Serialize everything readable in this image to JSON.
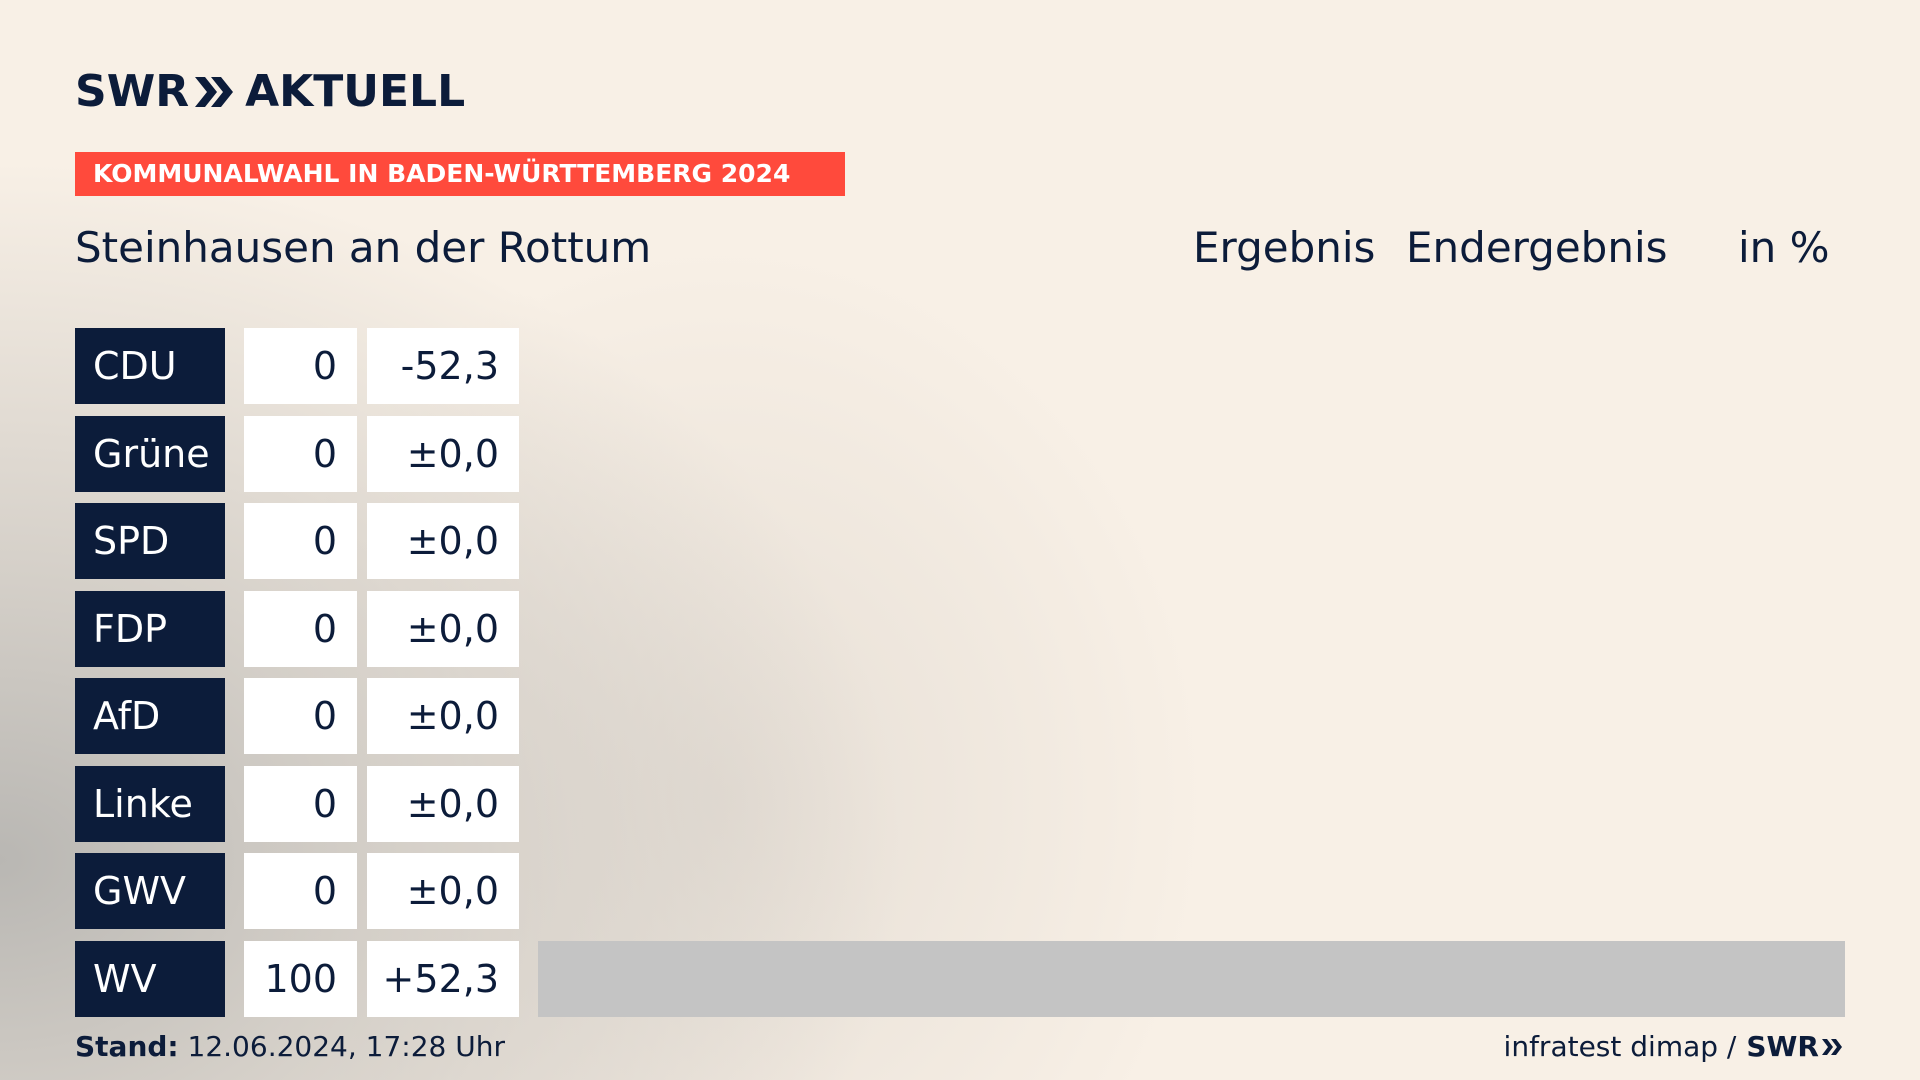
{
  "logo": {
    "text_left": "SWR",
    "text_right": "AKTUELL"
  },
  "banner": "KOMMUNALWAHL IN BADEN-WÜRTTEMBERG 2024",
  "title": "Steinhausen an der Rottum",
  "headers": {
    "ergebnis": "Ergebnis",
    "endergebnis": "Endergebnis",
    "unit": "in %"
  },
  "colors": {
    "party_bg": "#0c1c3a",
    "banner_bg": "#ff4a3c",
    "bar": "#c4c4c4"
  },
  "chart_data": {
    "type": "bar",
    "categories": [
      "CDU",
      "Grüne",
      "SPD",
      "FDP",
      "AfD",
      "Linke",
      "GWV",
      "WV"
    ],
    "values": [
      0,
      0,
      0,
      0,
      0,
      0,
      0,
      100
    ],
    "values_label": [
      "0",
      "0",
      "0",
      "0",
      "0",
      "0",
      "0",
      "100"
    ],
    "diff": [
      "-52,3",
      "±0,0",
      "±0,0",
      "±0,0",
      "±0,0",
      "±0,0",
      "±0,0",
      "+52,3"
    ],
    "ylim": [
      0,
      100
    ]
  },
  "footer": {
    "stand_label": "Stand:",
    "stand_value": "12.06.2024, 17:28 Uhr",
    "source": "infratest dimap /",
    "source_brand": "SWR"
  }
}
